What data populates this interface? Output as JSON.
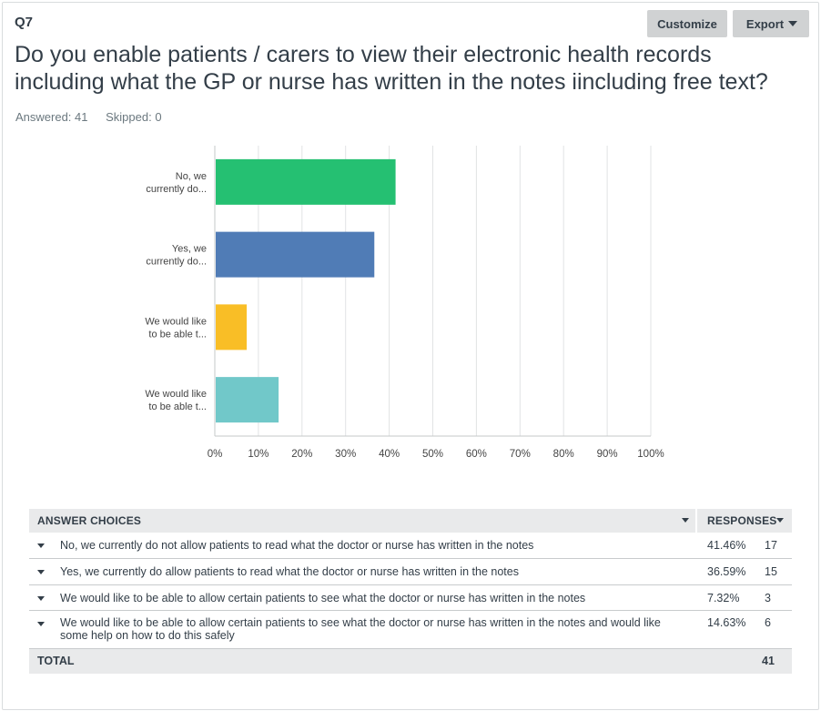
{
  "question": {
    "number": "Q7",
    "title": "Do you enable patients / carers to view their electronic health records including what the GP or nurse has written in the notes iincluding free text?",
    "answered": "Answered: 41",
    "skipped": "Skipped: 0"
  },
  "toolbar": {
    "customize_label": "Customize",
    "export_label": "Export"
  },
  "colors": {
    "green": "#25c072",
    "blue": "#507cb6",
    "yellow": "#f9be26",
    "teal": "#71c8c9"
  },
  "chart_data": {
    "type": "bar",
    "orientation": "horizontal",
    "categories": [
      [
        "No, we",
        "currently do..."
      ],
      [
        "Yes, we",
        "currently do..."
      ],
      [
        "We would like",
        "to be able t..."
      ],
      [
        "We would like",
        "to be able t..."
      ]
    ],
    "values": [
      41.46,
      36.59,
      7.32,
      14.63
    ],
    "colors": [
      "#25c072",
      "#507cb6",
      "#f9be26",
      "#71c8c9"
    ],
    "xlim": [
      0,
      100
    ],
    "xticks": [
      "0%",
      "10%",
      "20%",
      "30%",
      "40%",
      "50%",
      "60%",
      "70%",
      "80%",
      "90%",
      "100%"
    ],
    "grid": true
  },
  "table": {
    "header_choices": "ANSWER CHOICES",
    "header_responses": "RESPONSES",
    "rows": [
      {
        "label": "No, we currently do not allow patients to read what the doctor or nurse has written in the notes",
        "percent": "41.46%",
        "count": "17"
      },
      {
        "label": "Yes, we currently do allow patients to read what the doctor or nurse has written in the notes",
        "percent": "36.59%",
        "count": "15"
      },
      {
        "label": "We would like to be able to allow certain patients to see what the doctor or nurse has written in the notes",
        "percent": "7.32%",
        "count": "3"
      },
      {
        "label": "We would like to be able to allow certain patients to see what the doctor or nurse has written in the notes and would like some help on how to do this safely",
        "percent": "14.63%",
        "count": "6"
      }
    ],
    "total_label": "TOTAL",
    "total_value": "41"
  }
}
